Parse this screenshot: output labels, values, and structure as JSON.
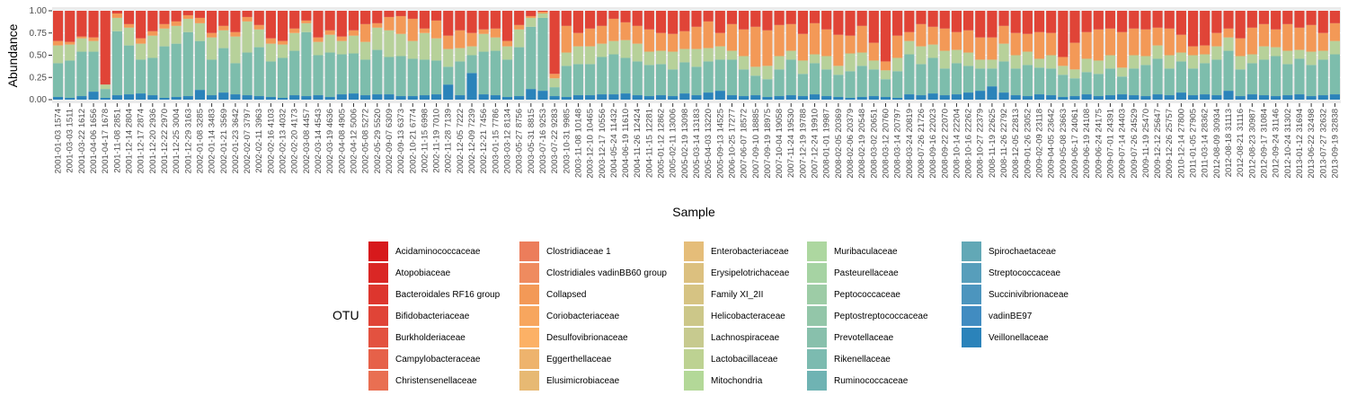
{
  "chart_data": {
    "type": "bar",
    "stacked": true,
    "ylabel": "Abundance",
    "xlabel": "Sample",
    "ylim": [
      0,
      1
    ],
    "yticks": [
      "0.00",
      "0.25",
      "0.50",
      "0.75",
      "1.00"
    ],
    "categories": [
      "2001-01-03 1574",
      "2001-03-03 1511",
      "2001-03-22 1612",
      "2001-04-06 1656",
      "2001-04-17 1678",
      "2001-11-08 2851",
      "2001-12-14 2804",
      "2001-12-17 2874",
      "2001-12-20 2936",
      "2001-12-22 2970",
      "2001-12-25 3004",
      "2001-12-29 3163",
      "2002-01-08 3285",
      "2002-01-14 3483",
      "2002-01-21 3569",
      "2002-01-23 3642",
      "2002-02-07 3797",
      "2002-02-11 3963",
      "2002-02-16 4103",
      "2002-02-13 4032",
      "2002-02-20 4173",
      "2002-03-08 4457",
      "2002-03-14 4543",
      "2002-03-19 4636",
      "2002-04-08 4905",
      "2002-04-12 5006",
      "2002-05-08 5272",
      "2002-05-29 5520",
      "2002-09-07 6309",
      "2002-09-13 6373",
      "2002-10-21 6774",
      "2002-11-15 6998",
      "2002-11-19 7010",
      "2002-11-28 7139",
      "2002-12-05 7222",
      "2002-12-09 7239",
      "2002-12-21 7456",
      "2003-01-15 7786",
      "2003-03-12 8134",
      "2003-05-27 8756",
      "2003-05-31 8815",
      "2003-07-16 9253",
      "2003-07-22 9283",
      "2003-10-31 9985",
      "2003-11-08 10148",
      "2003-12-10 10465",
      "2003-12-17 10556",
      "2004-05-24 11432",
      "2004-06-19 11610",
      "2004-11-26 12424",
      "2004-11-15 12281",
      "2005-01-12 12862",
      "2005-02-11 13006",
      "2005-02-19 13098",
      "2005-03-14 13183",
      "2005-04-03 13220",
      "2005-09-13 14525",
      "2006-10-25 17277",
      "2007-06-07 18572",
      "2007-09-10 18885",
      "2007-09-19 18975",
      "2007-10-04 19058",
      "2007-11-24 19530",
      "2007-12-19 19788",
      "2007-12-24 19910",
      "2008-01-01 19987",
      "2008-02-05 20369",
      "2008-02-06 20379",
      "2008-02-19 20548",
      "2008-03-02 20651",
      "2008-03-12 20760",
      "2008-03-14 20797",
      "2008-03-24 20819",
      "2008-07-26 21726",
      "2008-09-16 22023",
      "2008-09-22 22070",
      "2008-10-14 22204",
      "2008-10-16 22262",
      "2008-10-27 22379",
      "2008-11-19 22625",
      "2008-11-26 22792",
      "2008-12-05 22813",
      "2009-01-26 23052",
      "2009-02-09 23118",
      "2009-04-05 23642",
      "2009-05-08 23663",
      "2009-06-17 24061",
      "2009-06-19 24108",
      "2009-06-24 24175",
      "2009-07-01 24391",
      "2009-07-14 24403",
      "2009-07-26 24529",
      "2009-11-19 25470",
      "2009-12-12 25647",
      "2009-12-26 25757",
      "2010-12-14 27800",
      "2011-01-05 27905",
      "2011-03-14 28362",
      "2012-08-09 30934",
      "2012-08-18 31113",
      "2012-08-21 31116",
      "2012-08-23 30987",
      "2012-09-17 31084",
      "2012-09-24 31146",
      "2012-10-24 31302",
      "2013-01-12 31694",
      "2013-06-22 32498",
      "2013-07-27 32632",
      "2013-09-19 32838"
    ],
    "series": [
      {
        "name": "Acidaminococcaceae",
        "color": "#d7191c"
      },
      {
        "name": "Atopobiaceae",
        "color": "#da2725"
      },
      {
        "name": "Bacteroidales RF16 group",
        "color": "#dd362e"
      },
      {
        "name": "Bifidobacteriaceae",
        "color": "#e04437"
      },
      {
        "name": "Burkholderiaceae",
        "color": "#e35240"
      },
      {
        "name": "Campylobacteraceae",
        "color": "#e66149"
      },
      {
        "name": "Christensenellaceae",
        "color": "#e96f52"
      },
      {
        "name": "Clostridiaceae 1",
        "color": "#ec7d5b"
      },
      {
        "name": "Clostridiales vadinBB60 group",
        "color": "#ef8b5f"
      },
      {
        "name": "Collapsed",
        "color": "#f39957"
      },
      {
        "name": "Coriobacteriaceae",
        "color": "#f7a65e"
      },
      {
        "name": "Desulfovibrionaceae",
        "color": "#fcb166"
      },
      {
        "name": "Eggerthellaceae",
        "color": "#eeb36d"
      },
      {
        "name": "Elusimicrobiaceae",
        "color": "#e7b973"
      },
      {
        "name": "Enterobacteriaceae",
        "color": "#e5bd79"
      },
      {
        "name": "Erysipelotrichaceae",
        "color": "#dcc07f"
      },
      {
        "name": "Family XI_2II",
        "color": "#d6c383"
      },
      {
        "name": "Helicobacteraceae",
        "color": "#ccc789"
      },
      {
        "name": "Lachnospiraceae",
        "color": "#c7ca8f"
      },
      {
        "name": "Lactobacillaceae",
        "color": "#bdd292"
      },
      {
        "name": "Mitochondria",
        "color": "#b3d898"
      },
      {
        "name": "Muribaculaceae",
        "color": "#add7a0"
      },
      {
        "name": "Pasteurellaceae",
        "color": "#a6d3a3"
      },
      {
        "name": "Peptococcaceae",
        "color": "#9dcca6"
      },
      {
        "name": "Peptostreptococcaceae",
        "color": "#93c6a9"
      },
      {
        "name": "Prevotellaceae",
        "color": "#88c0ac"
      },
      {
        "name": "Rikenellaceae",
        "color": "#7cbbb0"
      },
      {
        "name": "Ruminococcaceae",
        "color": "#6fb3b3"
      },
      {
        "name": "Spirochaetaceae",
        "color": "#62a8b6"
      },
      {
        "name": "Streptococcaceae",
        "color": "#579ebb"
      },
      {
        "name": "Succinivibrionaceae",
        "color": "#4c95be"
      },
      {
        "name": "vadinBE97",
        "color": "#418cc1"
      },
      {
        "name": "Veillonellaceae",
        "color": "#2b83ba"
      }
    ],
    "main_series_note_values": {
      "Veillonellaceae": [
        0.03,
        0.02,
        0.04,
        0.09,
        0.02,
        0.05,
        0.06,
        0.07,
        0.05,
        0.02,
        0.03,
        0.04,
        0.11,
        0.05,
        0.08,
        0.06,
        0.05,
        0.04,
        0.03,
        0.02,
        0.05,
        0.04,
        0.05,
        0.03,
        0.06,
        0.07,
        0.05,
        0.06,
        0.06,
        0.04,
        0.04,
        0.05,
        0.06,
        0.17,
        0.05,
        0.3,
        0.06,
        0.05,
        0.03,
        0.04,
        0.12,
        0.1,
        0.04,
        0.03,
        0.05,
        0.05,
        0.06,
        0.06,
        0.07,
        0.05,
        0.04,
        0.05,
        0.04,
        0.07,
        0.05,
        0.08,
        0.1,
        0.05,
        0.04,
        0.05,
        0.03,
        0.04,
        0.05,
        0.04,
        0.06,
        0.04,
        0.03,
        0.02,
        0.03,
        0.04,
        0.03,
        0.02,
        0.06,
        0.05,
        0.07,
        0.05,
        0.06,
        0.08,
        0.1,
        0.15,
        0.08,
        0.05,
        0.04,
        0.06,
        0.05,
        0.03,
        0.04,
        0.06,
        0.04,
        0.05,
        0.06,
        0.05,
        0.04,
        0.06,
        0.05,
        0.08,
        0.05,
        0.06,
        0.05,
        0.1,
        0.04,
        0.06,
        0.05,
        0.04,
        0.05,
        0.06,
        0.04,
        0.05,
        0.06
      ],
      "Ruminococcaceae_group": [
        0.38,
        0.42,
        0.5,
        0.45,
        0.1,
        0.72,
        0.55,
        0.38,
        0.42,
        0.58,
        0.6,
        0.72,
        0.55,
        0.4,
        0.5,
        0.35,
        0.48,
        0.55,
        0.4,
        0.45,
        0.5,
        0.72,
        0.45,
        0.5,
        0.45,
        0.45,
        0.4,
        0.5,
        0.42,
        0.45,
        0.42,
        0.4,
        0.38,
        0.2,
        0.38,
        0.2,
        0.48,
        0.5,
        0.42,
        0.55,
        0.7,
        0.82,
        0.1,
        0.35,
        0.35,
        0.35,
        0.42,
        0.45,
        0.4,
        0.38,
        0.35,
        0.35,
        0.3,
        0.35,
        0.32,
        0.35,
        0.35,
        0.4,
        0.3,
        0.22,
        0.2,
        0.3,
        0.4,
        0.25,
        0.35,
        0.3,
        0.25,
        0.3,
        0.35,
        0.3,
        0.2,
        0.3,
        0.45,
        0.35,
        0.4,
        0.3,
        0.35,
        0.3,
        0.25,
        0.2,
        0.35,
        0.3,
        0.35,
        0.3,
        0.3,
        0.25,
        0.2,
        0.25,
        0.25,
        0.3,
        0.2,
        0.3,
        0.35,
        0.4,
        0.3,
        0.35,
        0.3,
        0.35,
        0.4,
        0.45,
        0.3,
        0.35,
        0.4,
        0.45,
        0.35,
        0.4,
        0.35,
        0.4,
        0.45
      ],
      "Lachnospiraceae_group": [
        0.2,
        0.18,
        0.15,
        0.12,
        0.05,
        0.15,
        0.2,
        0.18,
        0.25,
        0.2,
        0.2,
        0.15,
        0.2,
        0.25,
        0.2,
        0.3,
        0.35,
        0.2,
        0.2,
        0.15,
        0.2,
        0.1,
        0.15,
        0.2,
        0.15,
        0.2,
        0.2,
        0.25,
        0.3,
        0.25,
        0.2,
        0.3,
        0.25,
        0.2,
        0.15,
        0.1,
        0.2,
        0.15,
        0.15,
        0.2,
        0.1,
        0.05,
        0.1,
        0.15,
        0.2,
        0.2,
        0.15,
        0.15,
        0.2,
        0.2,
        0.15,
        0.15,
        0.2,
        0.15,
        0.2,
        0.15,
        0.15,
        0.1,
        0.15,
        0.1,
        0.15,
        0.15,
        0.1,
        0.15,
        0.1,
        0.15,
        0.1,
        0.2,
        0.15,
        0.1,
        0.1,
        0.15,
        0.15,
        0.2,
        0.15,
        0.2,
        0.15,
        0.15,
        0.1,
        0.1,
        0.2,
        0.15,
        0.15,
        0.1,
        0.15,
        0.1,
        0.1,
        0.15,
        0.15,
        0.15,
        0.1,
        0.15,
        0.1,
        0.15,
        0.15,
        0.1,
        0.15,
        0.1,
        0.15,
        0.15,
        0.15,
        0.1,
        0.15,
        0.1,
        0.15,
        0.1,
        0.15,
        0.1,
        0.15
      ],
      "Collapsed_group": [
        0.05,
        0.03,
        0.02,
        0.04,
        0.0,
        0.05,
        0.04,
        0.06,
        0.05,
        0.05,
        0.05,
        0.04,
        0.06,
        0.05,
        0.05,
        0.05,
        0.05,
        0.05,
        0.06,
        0.04,
        0.05,
        0.03,
        0.05,
        0.05,
        0.05,
        0.06,
        0.2,
        0.05,
        0.15,
        0.2,
        0.25,
        0.05,
        0.2,
        0.15,
        0.2,
        0.15,
        0.05,
        0.1,
        0.06,
        0.05,
        0.02,
        0.02,
        0.05,
        0.3,
        0.15,
        0.2,
        0.2,
        0.25,
        0.2,
        0.2,
        0.25,
        0.2,
        0.2,
        0.2,
        0.25,
        0.3,
        0.15,
        0.3,
        0.3,
        0.45,
        0.4,
        0.35,
        0.3,
        0.3,
        0.35,
        0.3,
        0.35,
        0.2,
        0.3,
        0.2,
        0.1,
        0.25,
        0.1,
        0.25,
        0.2,
        0.25,
        0.2,
        0.25,
        0.25,
        0.25,
        0.2,
        0.25,
        0.2,
        0.3,
        0.25,
        0.1,
        0.3,
        0.3,
        0.35,
        0.3,
        0.4,
        0.3,
        0.3,
        0.2,
        0.3,
        0.2,
        0.1,
        0.1,
        0.15,
        0.1,
        0.2,
        0.3,
        0.25,
        0.2,
        0.3,
        0.25,
        0.3,
        0.2,
        0.2
      ],
      "Red_group": [
        0.34,
        0.35,
        0.29,
        0.3,
        0.83,
        0.03,
        0.15,
        0.31,
        0.23,
        0.15,
        0.12,
        0.05,
        0.08,
        0.25,
        0.17,
        0.24,
        0.07,
        0.16,
        0.31,
        0.34,
        0.2,
        0.11,
        0.3,
        0.22,
        0.29,
        0.22,
        0.15,
        0.14,
        0.07,
        0.06,
        0.09,
        0.2,
        0.11,
        0.28,
        0.22,
        0.25,
        0.21,
        0.2,
        0.34,
        0.16,
        0.06,
        0.01,
        0.71,
        0.17,
        0.25,
        0.2,
        0.17,
        0.09,
        0.13,
        0.17,
        0.21,
        0.25,
        0.26,
        0.23,
        0.18,
        0.12,
        0.25,
        0.15,
        0.21,
        0.18,
        0.22,
        0.16,
        0.15,
        0.26,
        0.14,
        0.21,
        0.27,
        0.28,
        0.17,
        0.36,
        0.57,
        0.28,
        0.24,
        0.15,
        0.18,
        0.2,
        0.24,
        0.22,
        0.3,
        0.3,
        0.17,
        0.25,
        0.26,
        0.24,
        0.25,
        0.52,
        0.36,
        0.24,
        0.21,
        0.2,
        0.24,
        0.2,
        0.21,
        0.19,
        0.2,
        0.27,
        0.4,
        0.39,
        0.25,
        0.2,
        0.31,
        0.19,
        0.15,
        0.21,
        0.15,
        0.19,
        0.16,
        0.25,
        0.14
      ]
    }
  },
  "legend": {
    "title": "OTU",
    "columns": [
      [
        "Acidaminococcaceae",
        "Atopobiaceae",
        "Bacteroidales RF16 group",
        "Bifidobacteriaceae",
        "Burkholderiaceae",
        "Campylobacteraceae",
        "Christensenellaceae"
      ],
      [
        "Clostridiaceae 1",
        "Clostridiales vadinBB60 group",
        "Collapsed",
        "Coriobacteriaceae",
        "Desulfovibrionaceae",
        "Eggerthellaceae",
        "Elusimicrobiaceae"
      ],
      [
        "Enterobacteriaceae",
        "Erysipelotrichaceae",
        "Family XI_2II",
        "Helicobacteraceae",
        "Lachnospiraceae",
        "Lactobacillaceae",
        "Mitochondria"
      ],
      [
        "Muribaculaceae",
        "Pasteurellaceae",
        "Peptococcaceae",
        "Peptostreptococcaceae",
        "Prevotellaceae",
        "Rikenellaceae",
        "Ruminococcaceae"
      ],
      [
        "Spirochaetaceae",
        "Streptococcaceae",
        "Succinivibrionaceae",
        "vadinBE97",
        "Veillonellaceae"
      ]
    ]
  }
}
